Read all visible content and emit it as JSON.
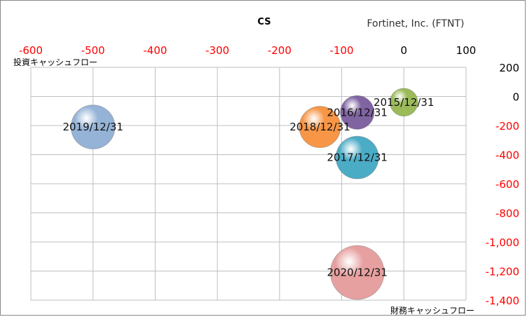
{
  "chart_data": {
    "type": "bubble",
    "title": "CS",
    "subtitle": "Fortinet, Inc. (FTNT)",
    "xlabel": "財務キャッシュフロー",
    "ylabel": "投資キャッシュフロー",
    "xlim": [
      -600,
      100
    ],
    "ylim": [
      -1400,
      200
    ],
    "x_ticks": [
      -600,
      -500,
      -400,
      -300,
      -200,
      -100,
      0,
      100
    ],
    "y_ticks": [
      200,
      0,
      -200,
      -400,
      -600,
      -800,
      -1000,
      -1200,
      -1400
    ],
    "x_tick_labels": [
      "-600",
      "-500",
      "-400",
      "-300",
      "-200",
      "-100",
      "0",
      "100"
    ],
    "y_tick_labels": [
      "200",
      "0",
      "-200",
      "-400",
      "-600",
      "-800",
      "-1,000",
      "-1,200",
      "-1,400"
    ],
    "negative_tick_color": "#ff0000",
    "positive_tick_color": "#000000",
    "grid": true,
    "series": [
      {
        "name": "2015/12/31",
        "x": 0,
        "y": -40,
        "size": 0.62,
        "color": "#9bbb59"
      },
      {
        "name": "2016/12/31",
        "x": -75,
        "y": -110,
        "size": 0.75,
        "color": "#8064a2"
      },
      {
        "name": "2017/12/31",
        "x": -75,
        "y": -420,
        "size": 0.95,
        "color": "#4bacc6"
      },
      {
        "name": "2018/12/31",
        "x": -135,
        "y": -210,
        "size": 0.92,
        "color": "#f79646"
      },
      {
        "name": "2019/12/31",
        "x": -500,
        "y": -210,
        "size": 0.98,
        "color": "#95b3d7"
      },
      {
        "name": "2020/12/31",
        "x": -75,
        "y": -1210,
        "size": 1.2,
        "color": "#e6a0a0"
      }
    ]
  }
}
